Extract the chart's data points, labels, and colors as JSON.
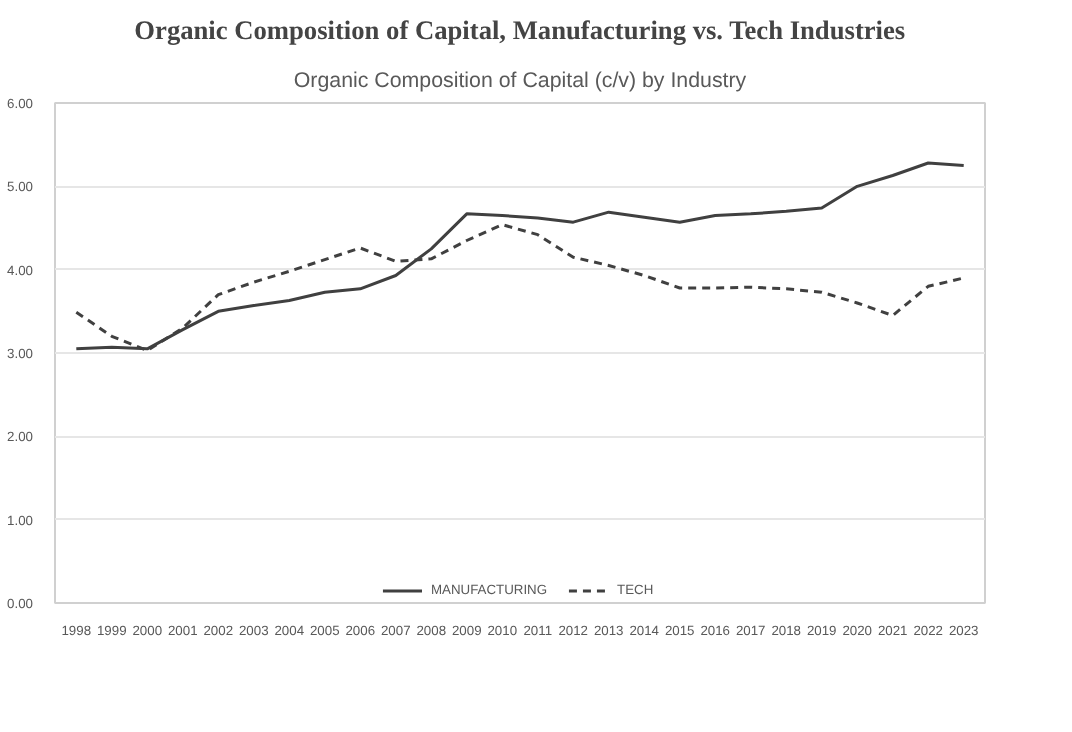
{
  "chart_data": {
    "type": "line",
    "title": "Organic Composition of Capital, Manufacturing vs. Tech Industries",
    "subtitle": "Organic Composition of Capital (c/v) by Industry",
    "categories": [
      "1998",
      "1999",
      "2000",
      "2001",
      "2002",
      "2003",
      "2004",
      "2005",
      "2006",
      "2007",
      "2008",
      "2009",
      "2010",
      "2011",
      "2012",
      "2013",
      "2014",
      "2015",
      "2016",
      "2017",
      "2018",
      "2019",
      "2020",
      "2021",
      "2022",
      "2023"
    ],
    "series": [
      {
        "name": "MANUFACTURING",
        "color": "#404040",
        "line_style": "solid",
        "values": [
          3.05,
          3.07,
          3.05,
          3.28,
          3.5,
          3.57,
          3.63,
          3.73,
          3.77,
          3.93,
          4.25,
          4.67,
          4.65,
          4.62,
          4.57,
          4.69,
          4.63,
          4.57,
          4.65,
          4.67,
          4.7,
          4.74,
          5.0,
          5.13,
          5.28,
          5.25
        ]
      },
      {
        "name": "TECH",
        "color": "#404040",
        "line_style": "dashed",
        "values": [
          3.49,
          3.2,
          3.03,
          3.3,
          3.7,
          3.85,
          3.98,
          4.12,
          4.26,
          4.1,
          4.13,
          4.35,
          4.54,
          4.42,
          4.15,
          4.05,
          3.93,
          3.78,
          3.78,
          3.79,
          3.77,
          3.73,
          3.6,
          3.45,
          3.8,
          3.9
        ]
      }
    ],
    "ylim": [
      0,
      6
    ],
    "yticks": [
      {
        "value": 0,
        "label": "0.00"
      },
      {
        "value": 1,
        "label": "1.00"
      },
      {
        "value": 2,
        "label": "2.00"
      },
      {
        "value": 3,
        "label": "3.00"
      },
      {
        "value": 4,
        "label": "4.00"
      },
      {
        "value": 5,
        "label": "5.00"
      },
      {
        "value": 6,
        "label": "6.00"
      }
    ],
    "grid": "y",
    "legend": "bottom",
    "marker": "none"
  }
}
